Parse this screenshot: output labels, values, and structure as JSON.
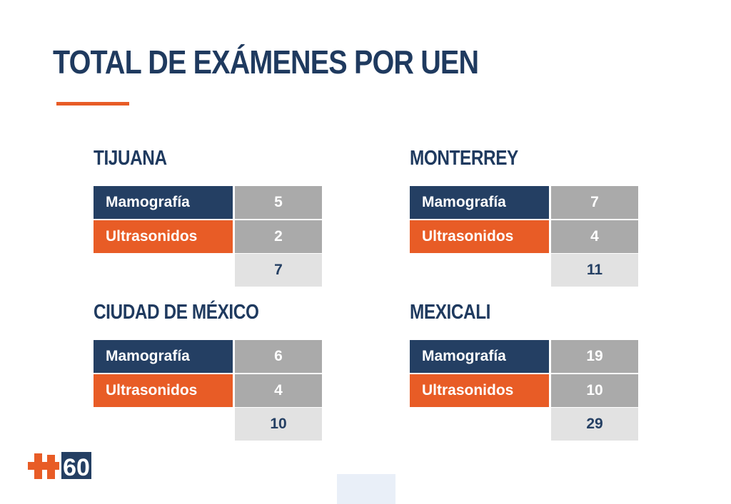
{
  "title": "TOTAL DE EXÁMENES POR UEN",
  "colors": {
    "navy": "#243f63",
    "orange": "#e85c26",
    "gray": "#aaaaaa",
    "light_gray": "#e2e2e2"
  },
  "logo": {
    "icon": "cross-60-logo",
    "text": "60"
  },
  "cities": [
    {
      "name": "TIJUANA",
      "rows": [
        {
          "label": "Mamografía",
          "value": "5"
        },
        {
          "label": "Ultrasonidos",
          "value": "2"
        }
      ],
      "total": "7"
    },
    {
      "name": "MONTERREY",
      "rows": [
        {
          "label": "Mamografía",
          "value": "7"
        },
        {
          "label": "Ultrasonidos",
          "value": "4"
        }
      ],
      "total": "11"
    },
    {
      "name": "CIUDAD DE MÉXICO",
      "rows": [
        {
          "label": "Mamografía",
          "value": "6"
        },
        {
          "label": "Ultrasonidos",
          "value": "4"
        }
      ],
      "total": "10"
    },
    {
      "name": "MEXICALI",
      "rows": [
        {
          "label": "Mamografía",
          "value": "19"
        },
        {
          "label": "Ultrasonidos",
          "value": "10"
        }
      ],
      "total": "29"
    }
  ]
}
